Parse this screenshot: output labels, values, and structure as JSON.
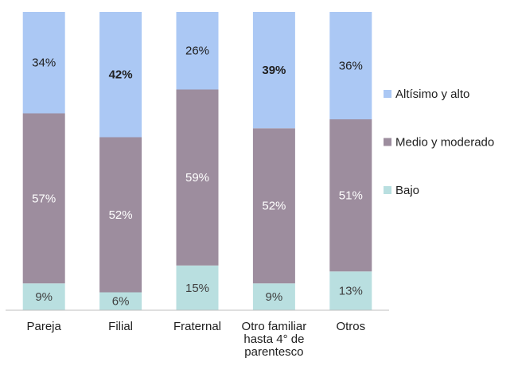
{
  "chart_data": {
    "type": "stacked_bar",
    "categories": [
      "Pareja",
      "Filial",
      "Fraternal",
      "Otro familiar hasta 4° de parentesco",
      "Otros"
    ],
    "series": [
      {
        "name": "Bajo",
        "color": "#b9dfe0",
        "label_color": "#404040",
        "values": [
          9,
          6,
          15,
          9,
          13
        ],
        "value_labels": [
          "9%",
          "6%",
          "15%",
          "9%",
          "13%"
        ],
        "bold": [
          false,
          false,
          false,
          false,
          false
        ]
      },
      {
        "name": "Medio y moderado",
        "color": "#9d8d9e",
        "label_color": "#ffffff",
        "values": [
          57,
          52,
          59,
          52,
          51
        ],
        "value_labels": [
          "57%",
          "52%",
          "59%",
          "52%",
          "51%"
        ],
        "bold": [
          false,
          false,
          false,
          false,
          false
        ]
      },
      {
        "name": "Altísimo y alto",
        "color": "#abc8f4",
        "label_color": "#202020",
        "values": [
          34,
          42,
          26,
          39,
          36
        ],
        "value_labels": [
          "34%",
          "42%",
          "26%",
          "39%",
          "36%"
        ],
        "bold": [
          false,
          true,
          false,
          true,
          false
        ]
      }
    ],
    "ylim": [
      0,
      100
    ],
    "legend": "right"
  }
}
